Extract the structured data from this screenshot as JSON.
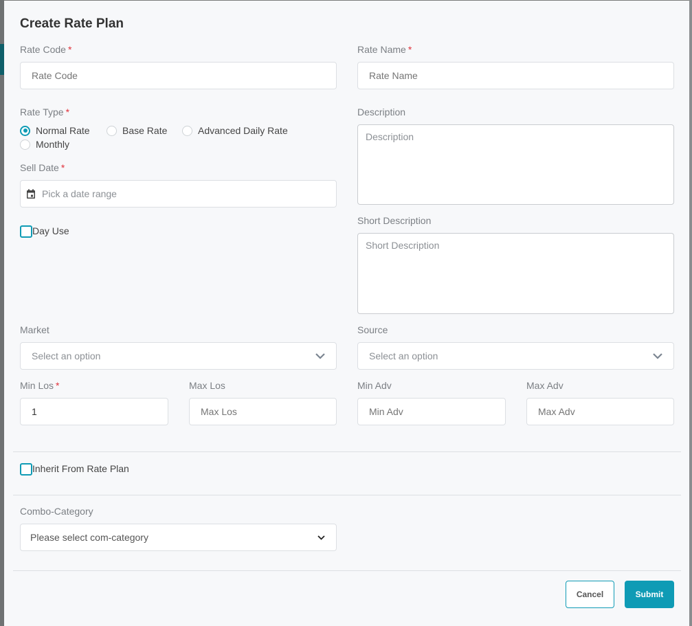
{
  "title": "Create Rate Plan",
  "required_mark": "*",
  "rate_code": {
    "label": "Rate Code",
    "placeholder": "Rate Code"
  },
  "rate_name": {
    "label": "Rate Name",
    "placeholder": "Rate Name"
  },
  "rate_type": {
    "label": "Rate Type",
    "options": [
      "Normal Rate",
      "Base Rate",
      "Advanced Daily Rate",
      "Monthly"
    ],
    "selected": "Normal Rate"
  },
  "description": {
    "label": "Description",
    "placeholder": "Description"
  },
  "sell_date": {
    "label": "Sell Date",
    "placeholder": "Pick a date range",
    "icon": "calendar-icon"
  },
  "day_use": {
    "label": "Day Use",
    "checked": false
  },
  "short_description": {
    "label": "Short Description",
    "placeholder": "Short Description"
  },
  "market": {
    "label": "Market",
    "placeholder": "Select an option"
  },
  "source": {
    "label": "Source",
    "placeholder": "Select an option"
  },
  "min_los": {
    "label": "Min Los",
    "value": "1"
  },
  "max_los": {
    "label": "Max Los",
    "placeholder": "Max Los"
  },
  "min_adv": {
    "label": "Min Adv",
    "placeholder": "Min Adv"
  },
  "max_adv": {
    "label": "Max Adv",
    "placeholder": "Max Adv"
  },
  "inherit": {
    "label": "Inherit From Rate Plan",
    "checked": false
  },
  "combo": {
    "label": "Combo-Category",
    "placeholder": "Please select com-category"
  },
  "buttons": {
    "cancel": "Cancel",
    "submit": "Submit"
  },
  "colors": {
    "accent": "#0f9bb5",
    "required": "#e0313a"
  }
}
